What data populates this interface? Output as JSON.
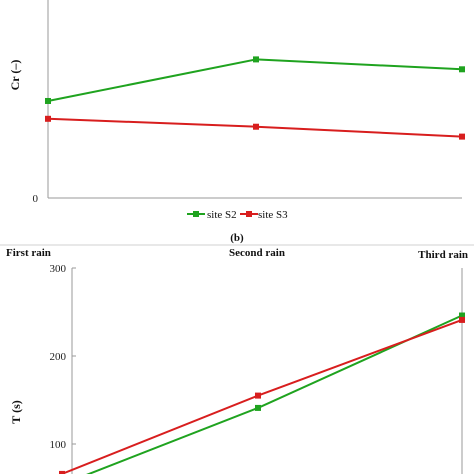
{
  "colors": {
    "site_s2": "#1fa31f",
    "site_s3": "#d81e1e",
    "axis": "#9a9a9a"
  },
  "panel_label": "(b)",
  "chart_data": [
    {
      "type": "line",
      "ylabel": "Cr (–)",
      "ytick_labels": [
        "0"
      ],
      "ylim": [
        0,
        1
      ],
      "categories": [
        "First rain",
        "Second rain",
        "Third rain"
      ],
      "series": [
        {
          "name": "site S2",
          "values": [
            0.49,
            0.7,
            0.65
          ]
        },
        {
          "name": "site S3",
          "values": [
            0.4,
            0.36,
            0.31
          ]
        }
      ],
      "legend": "bottom"
    },
    {
      "type": "line",
      "ylabel": "T (s)",
      "ylim": [
        50,
        300
      ],
      "yticks": [
        100,
        200,
        300
      ],
      "categories": [
        "First rain",
        "Second rain",
        "Third rain"
      ],
      "series": [
        {
          "name": "site S2",
          "values": [
            54,
            141,
            246
          ]
        },
        {
          "name": "site S3",
          "values": [
            66,
            155,
            241
          ]
        }
      ],
      "legend": "none"
    }
  ]
}
